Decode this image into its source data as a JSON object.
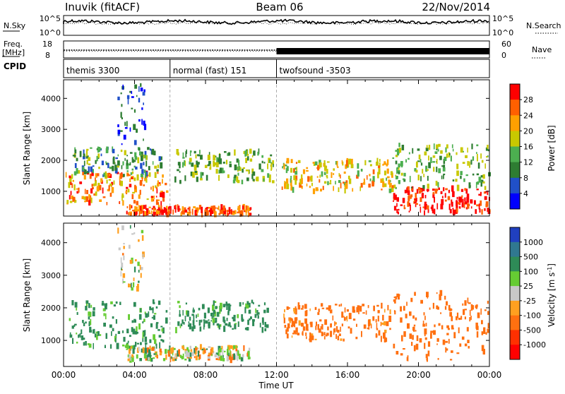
{
  "header": {
    "station": "Inuvik (fitACF)",
    "beam": "Beam 06",
    "date": "22/Nov/2014"
  },
  "noise_panel": {
    "left_label": "N.Sky",
    "left_ticks": [
      "10^5",
      "10^0"
    ],
    "right_label": "N.Search",
    "right_ticks": [
      "10^5",
      "10^0"
    ]
  },
  "freq_panel": {
    "left_label_line1": "Freq.",
    "left_label_line2": "[MHz]",
    "left_ticks": [
      "18",
      "8"
    ],
    "right_label": "Nave",
    "right_ticks": [
      "60",
      "0"
    ]
  },
  "cpid_panel": {
    "label": "CPID",
    "segments": [
      {
        "name": "themis 3300",
        "start_hour": 0,
        "end_hour": 6
      },
      {
        "name": "normal (fast) 151",
        "start_hour": 6,
        "end_hour": 12
      },
      {
        "name": "twofsound -3503",
        "start_hour": 12,
        "end_hour": 24
      }
    ]
  },
  "chart_data": [
    {
      "type": "heatmap",
      "title": "",
      "xlabel": "",
      "ylabel": "Slant Range [km]",
      "xlim": [
        0,
        24
      ],
      "ylim": [
        200,
        4600
      ],
      "y_ticks": [
        "1000",
        "2000",
        "3000",
        "4000"
      ],
      "colorbar": {
        "label": "Power [dB]",
        "ticks": [
          "28",
          "24",
          "20",
          "16",
          "12",
          "8",
          "4"
        ],
        "range": [
          0,
          32
        ],
        "colors": [
          "#0000ff",
          "#2050c8",
          "#2e7d32",
          "#4caf50",
          "#c8c800",
          "#ffa000",
          "#ff6000",
          "#ff0000"
        ]
      },
      "echo_regions": [
        {
          "t0": 0.1,
          "t1": 5.9,
          "r0": 600,
          "r1": 1600,
          "value": 24
        },
        {
          "t0": 0.5,
          "t1": 5.5,
          "r0": 1500,
          "r1": 2400,
          "value": 12
        },
        {
          "t0": 6.2,
          "t1": 11.8,
          "r0": 1300,
          "r1": 2300,
          "value": 14
        },
        {
          "t0": 12.2,
          "t1": 18.5,
          "r0": 1000,
          "r1": 2000,
          "value": 20
        },
        {
          "t0": 18.5,
          "t1": 24,
          "r0": 300,
          "r1": 1100,
          "value": 30
        },
        {
          "t0": 18.5,
          "t1": 24,
          "r0": 1100,
          "r1": 2500,
          "value": 14
        },
        {
          "t0": 3.5,
          "t1": 10.5,
          "r0": 250,
          "r1": 500,
          "value": 26
        },
        {
          "t0": 3.0,
          "t1": 4.6,
          "r0": 2500,
          "r1": 4500,
          "value": 6
        }
      ]
    },
    {
      "type": "heatmap",
      "title": "",
      "xlabel": "Time UT",
      "ylabel": "Slant Range [km]",
      "xlim": [
        0,
        24
      ],
      "ylim": [
        200,
        4600
      ],
      "x_ticks": [
        "00:00",
        "04:00",
        "08:00",
        "12:00",
        "16:00",
        "20:00",
        "00:00"
      ],
      "y_ticks": [
        "1000",
        "2000",
        "3000",
        "4000"
      ],
      "colorbar": {
        "label": "Velocity [m s^-1]",
        "ticks": [
          "1000",
          "500",
          "100",
          "25",
          "-25",
          "-100",
          "-500",
          "-1000"
        ],
        "colors": [
          "#2040c0",
          "#307890",
          "#2e8b57",
          "#66cc33",
          "#c8c8c8",
          "#ffa020",
          "#ff7010",
          "#ff3000",
          "#ff0000"
        ]
      },
      "echo_regions": [
        {
          "t0": 0.3,
          "t1": 5.8,
          "r0": 800,
          "r1": 2200,
          "value": 180
        },
        {
          "t0": 6.2,
          "t1": 11.5,
          "r0": 1300,
          "r1": 2200,
          "value": 200
        },
        {
          "t0": 3.5,
          "t1": 10.5,
          "r0": 400,
          "r1": 800,
          "value": 0
        },
        {
          "t0": 12.3,
          "t1": 18.5,
          "r0": 1000,
          "r1": 2100,
          "value": -200
        },
        {
          "t0": 18.5,
          "t1": 24,
          "r0": 400,
          "r1": 2500,
          "value": -300
        },
        {
          "t0": 3.0,
          "t1": 4.6,
          "r0": 2500,
          "r1": 4500,
          "value": 20
        }
      ]
    }
  ]
}
